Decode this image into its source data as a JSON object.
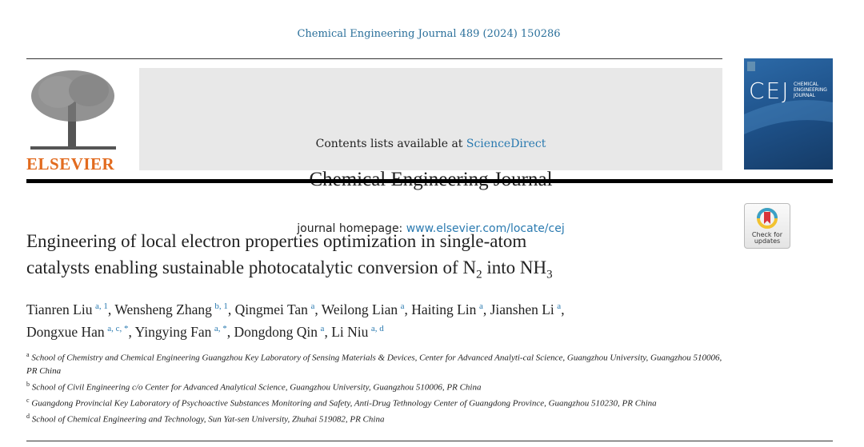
{
  "citation": "Chemical Engineering Journal 489 (2024) 150286",
  "masthead": {
    "contents_prefix": "Contents lists available at ",
    "contents_link": "ScienceDirect",
    "journal_title": "Chemical Engineering Journal",
    "homepage_prefix": "journal homepage: ",
    "homepage_link": "www.elsevier.com/locate/cej",
    "publisher_logo": "ELSEVIER",
    "cover": {
      "abbrev": "CEJ",
      "name": "CHEMICAL ENGINEERING JOURNAL"
    }
  },
  "check_updates": {
    "line1": "Check for",
    "line2": "updates"
  },
  "article": {
    "title_line1": "Engineering of local electron properties optimization in single-atom",
    "title_line2_a": "catalysts enabling sustainable photocatalytic conversion of N",
    "title_line2_b": " into NH",
    "authors": [
      {
        "name": "Tianren Liu",
        "sup": "a, 1"
      },
      {
        "name": "Wensheng Zhang",
        "sup": "b, 1"
      },
      {
        "name": "Qingmei Tan",
        "sup": "a"
      },
      {
        "name": "Weilong Lian",
        "sup": "a"
      },
      {
        "name": "Haiting Lin",
        "sup": "a"
      },
      {
        "name": "Jianshen Li",
        "sup": "a"
      },
      {
        "name": "Dongxue Han",
        "sup": "a, c, *"
      },
      {
        "name": "Yingying Fan",
        "sup": "a, *"
      },
      {
        "name": "Dongdong Qin",
        "sup": "a"
      },
      {
        "name": "Li Niu",
        "sup": "a, d"
      }
    ],
    "affiliations": [
      {
        "key": "a",
        "text": "School of Chemistry and Chemical Engineering Guangzhou Key Laboratory of Sensing Materials & Devices, Center for Advanced Analyti-cal Science, Guangzhou University, Guangzhou 510006, PR China"
      },
      {
        "key": "b",
        "text": "School of Civil Engineering c/o Center for Advanced Analytical Science, Guangzhou University, Guangzhou 510006, PR China"
      },
      {
        "key": "c",
        "text": "Guangdong Provincial Key Laboratory of Psychoactive Substances Monitoring and Safety, Anti-Drug Tethnology Center of Guangdong Province, Guangzhou 510230, PR China"
      },
      {
        "key": "d",
        "text": "School of Chemical Engineering and Technology, Sun Yat-sen University, Zhuhai 519082, PR China"
      }
    ]
  },
  "colors": {
    "link": "#2a7ab0",
    "elsevier": "#e26b1f",
    "cover": "#1d4f86"
  }
}
